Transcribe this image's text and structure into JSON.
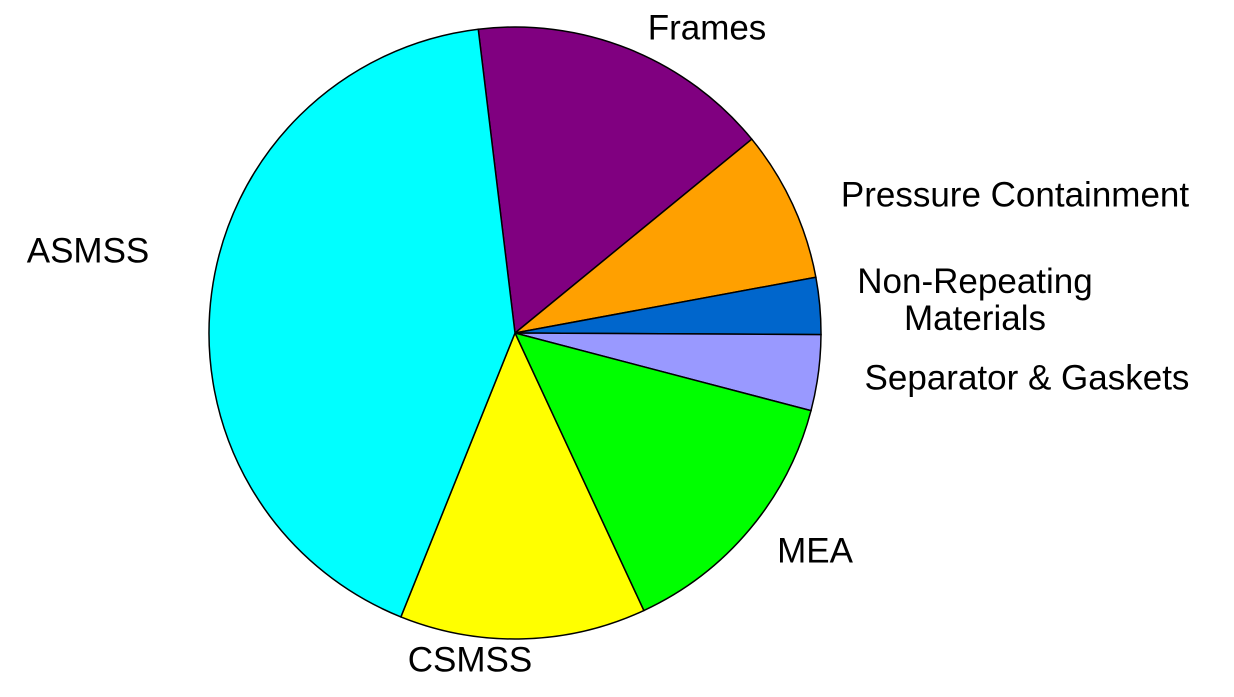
{
  "chart_data": {
    "type": "pie",
    "categories": [
      "Frames",
      "Pressure Containment",
      "Non-Repeating Materials",
      "Separator & Gaskets",
      "MEA",
      "CSMSS",
      "ASMSS"
    ],
    "values": [
      16,
      8,
      3,
      4,
      14,
      13,
      42
    ],
    "colors": [
      "#800080",
      "#ffa000",
      "#0066cc",
      "#9999ff",
      "#00ff00",
      "#ffff00",
      "#00ffff"
    ]
  }
}
